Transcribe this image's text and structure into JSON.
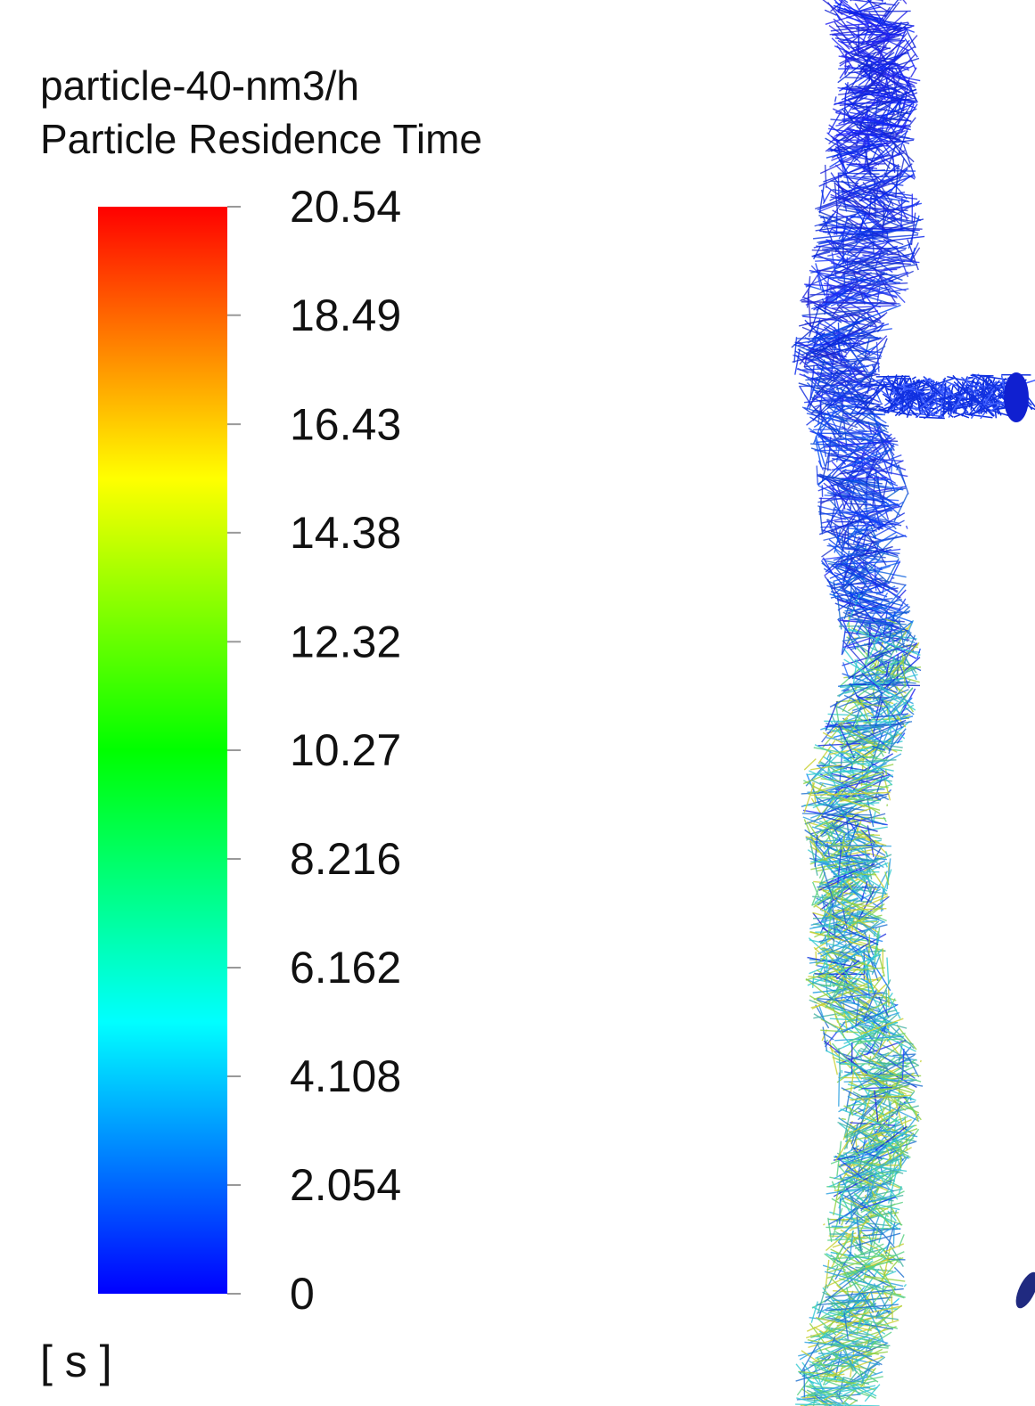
{
  "chart_data": {
    "type": "colorbar",
    "title": "particle-40-nm3/h",
    "subtitle": "Particle Residence Time",
    "unit": "[ s ]",
    "ylim": [
      0,
      20.54
    ],
    "yticks": [
      0,
      2.054,
      4.108,
      6.162,
      8.216,
      10.27,
      12.32,
      14.38,
      16.43,
      18.49,
      20.54
    ],
    "colormap": [
      "#0000ff",
      "#00ffff",
      "#00ff00",
      "#ffff00",
      "#ff0000"
    ]
  }
}
